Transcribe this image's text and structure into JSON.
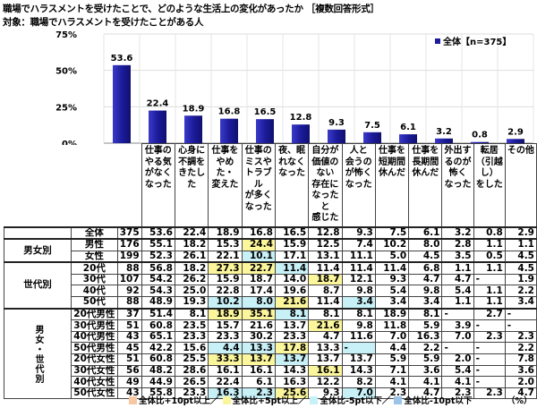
{
  "title": "職場でハラスメントを受けたことで、どのような生活上の変化があったか ［複数回答形式］",
  "subtitle": "対象：職場でハラスメントを受けたことがある人",
  "chart_data": {
    "type": "bar",
    "categories": [
      "仕事のやる気がなくなった",
      "心身に不調をきたした",
      "仕事をやめた・変えた",
      "仕事のミスやトラブルが多くなった",
      "夜、眠れなくなった",
      "自分が価値のない存在になったと感じた",
      "人と会うのが怖くなった",
      "仕事を短期間休んだ",
      "仕事を長期間休んだ",
      "外出するのが怖くなった",
      "転居（引越し）をした",
      "その他"
    ],
    "series": [
      {
        "name": "全体【n=375】",
        "values": [
          53.6,
          22.4,
          18.9,
          16.8,
          16.5,
          12.8,
          9.3,
          7.5,
          6.1,
          3.2,
          0.8,
          2.9
        ]
      }
    ],
    "ylim": [
      0,
      75
    ],
    "yticks": [
      "0%",
      "25%",
      "50%",
      "75%"
    ],
    "legend_position": "top-right",
    "bar_color": "#1c1c9c"
  },
  "table": {
    "headers": [
      "仕事の\nやる気\nがなく\nなった",
      "心身に\n不調を\nきたした",
      "仕事を\nやめた・\n変えた",
      "仕事の\nミスや\nトラブル\nが多く\nなった",
      "夜、眠\nれなく\nなった",
      "自分が\n価値の\nない\n存在に\nなったと\n感じた",
      "人と\n会うの\nが怖く\nなった",
      "仕事を\n短期間\n休んだ",
      "仕事を\n長期間\n休んだ",
      "外出す\nるのが\n怖く\nなった",
      "転居\n（引越し）\nをした",
      "その他"
    ],
    "groups": [
      {
        "label": "",
        "rows": [
          {
            "label": "全体",
            "n": "375",
            "values": [
              "53.6",
              "22.4",
              "18.9",
              "16.8",
              "16.5",
              "12.8",
              "9.3",
              "7.5",
              "6.1",
              "3.2",
              "0.8",
              "2.9"
            ],
            "hl": [
              "",
              "",
              "",
              "",
              "",
              "",
              "",
              "",
              "",
              "",
              "",
              ""
            ]
          }
        ]
      },
      {
        "label": "男女別",
        "rows": [
          {
            "label": "男性",
            "n": "176",
            "values": [
              "55.1",
              "18.2",
              "15.3",
              "24.4",
              "15.9",
              "12.5",
              "7.4",
              "10.2",
              "8.0",
              "2.8",
              "1.1",
              "1.1"
            ],
            "hl": [
              "",
              "",
              "",
              "y",
              "",
              "",
              "",
              "",
              "",
              "",
              "",
              ""
            ]
          },
          {
            "label": "女性",
            "n": "199",
            "values": [
              "52.3",
              "26.1",
              "22.1",
              "10.1",
              "17.1",
              "13.1",
              "11.1",
              "5.0",
              "4.5",
              "3.5",
              "0.5",
              "4.5"
            ],
            "hl": [
              "",
              "",
              "",
              "c",
              "",
              "",
              "",
              "",
              "",
              "",
              "",
              ""
            ]
          }
        ]
      },
      {
        "label": "世代別",
        "rows": [
          {
            "label": "20代",
            "n": "88",
            "values": [
              "56.8",
              "18.2",
              "27.3",
              "22.7",
              "11.4",
              "11.4",
              "11.4",
              "11.4",
              "6.8",
              "1.1",
              "1.1",
              "4.5"
            ],
            "hl": [
              "",
              "",
              "y",
              "y",
              "c",
              "",
              "",
              "",
              "",
              "",
              "",
              ""
            ]
          },
          {
            "label": "30代",
            "n": "107",
            "values": [
              "54.2",
              "26.2",
              "15.9",
              "18.7",
              "14.0",
              "18.7",
              "12.1",
              "9.3",
              "4.7",
              "4.7",
              "-",
              "1.9"
            ],
            "hl": [
              "",
              "",
              "",
              "",
              "",
              "y",
              "",
              "",
              "",
              "",
              "",
              ""
            ]
          },
          {
            "label": "40代",
            "n": "92",
            "values": [
              "54.3",
              "25.0",
              "22.8",
              "17.4",
              "19.6",
              "8.7",
              "9.8",
              "5.4",
              "9.8",
              "5.4",
              "1.1",
              "2.2"
            ],
            "hl": [
              "",
              "",
              "",
              "",
              "",
              "",
              "",
              "",
              "",
              "",
              "",
              ""
            ]
          },
          {
            "label": "50代",
            "n": "88",
            "values": [
              "48.9",
              "19.3",
              "10.2",
              "8.0",
              "21.6",
              "11.4",
              "3.4",
              "3.4",
              "3.4",
              "1.1",
              "1.1",
              "3.4"
            ],
            "hl": [
              "",
              "",
              "c",
              "c",
              "y",
              "",
              "c",
              "",
              "",
              "",
              "",
              ""
            ]
          }
        ]
      },
      {
        "label": "男女・世代別",
        "rows": [
          {
            "label": "20代男性",
            "n": "37",
            "values": [
              "51.4",
              "8.1",
              "18.9",
              "35.1",
              "8.1",
              "8.1",
              "8.1",
              "18.9",
              "8.1",
              "-",
              "2.7",
              "-"
            ],
            "hl": [
              "",
              "",
              "y",
              "y",
              "c",
              "",
              "",
              "",
              "",
              "",
              "",
              ""
            ]
          },
          {
            "label": "30代男性",
            "n": "51",
            "values": [
              "60.8",
              "23.5",
              "15.7",
              "21.6",
              "13.7",
              "21.6",
              "9.8",
              "11.8",
              "5.9",
              "3.9",
              "-",
              "-"
            ],
            "hl": [
              "",
              "",
              "",
              "",
              "",
              "y",
              "",
              "",
              "",
              "",
              "",
              ""
            ]
          },
          {
            "label": "40代男性",
            "n": "43",
            "values": [
              "65.1",
              "23.3",
              "23.3",
              "30.2",
              "23.3",
              "4.7",
              "11.6",
              "7.0",
              "16.3",
              "7.0",
              "2.3",
              "2.3"
            ],
            "hl": [
              "",
              "",
              "",
              "",
              "",
              "",
              "",
              "",
              "",
              "",
              "",
              ""
            ]
          },
          {
            "label": "50代男性",
            "n": "45",
            "values": [
              "42.2",
              "15.6",
              "4.4",
              "13.3",
              "17.8",
              "13.3",
              "-",
              "4.4",
              "2.2",
              "-",
              "-",
              "2.2"
            ],
            "hl": [
              "",
              "",
              "c",
              "c",
              "y",
              "",
              "c",
              "",
              "",
              "",
              "",
              ""
            ]
          },
          {
            "label": "20代女性",
            "n": "51",
            "values": [
              "60.8",
              "25.5",
              "33.3",
              "13.7",
              "13.7",
              "13.7",
              "13.7",
              "5.9",
              "5.9",
              "2.0",
              "-",
              "7.8"
            ],
            "hl": [
              "",
              "",
              "y",
              "y",
              "c",
              "",
              "",
              "",
              "",
              "",
              "",
              ""
            ]
          },
          {
            "label": "30代女性",
            "n": "56",
            "values": [
              "48.2",
              "28.6",
              "16.1",
              "16.1",
              "14.3",
              "16.1",
              "14.3",
              "7.1",
              "3.6",
              "5.4",
              "-",
              "3.6"
            ],
            "hl": [
              "",
              "",
              "",
              "",
              "",
              "y",
              "",
              "",
              "",
              "",
              "",
              ""
            ]
          },
          {
            "label": "40代女性",
            "n": "49",
            "values": [
              "44.9",
              "26.5",
              "22.4",
              "6.1",
              "16.3",
              "12.2",
              "8.2",
              "4.1",
              "4.1",
              "4.1",
              "-",
              "2.0"
            ],
            "hl": [
              "",
              "",
              "",
              "",
              "",
              "",
              "",
              "",
              "",
              "",
              "",
              ""
            ]
          },
          {
            "label": "50代女性",
            "n": "43",
            "values": [
              "55.8",
              "23.3",
              "16.3",
              "2.3",
              "25.6",
              "9.3",
              "7.0",
              "2.3",
              "4.7",
              "2.3",
              "2.3",
              "4.7"
            ],
            "hl": [
              "",
              "",
              "c",
              "c",
              "y",
              "",
              "c",
              "",
              "",
              "",
              "",
              ""
            ]
          }
        ]
      }
    ]
  },
  "legend": {
    "items": [
      {
        "label": "全体比+10pt以上／",
        "color": "#f6c8a2"
      },
      {
        "label": "全体比+5pt以上／",
        "color": "#fbf59b"
      },
      {
        "label": "全体比-5pt以下／",
        "color": "#c7f0f7"
      },
      {
        "label": "全体比-10pt以下",
        "color": "#9cc3e8"
      }
    ],
    "unit": "（%）"
  }
}
